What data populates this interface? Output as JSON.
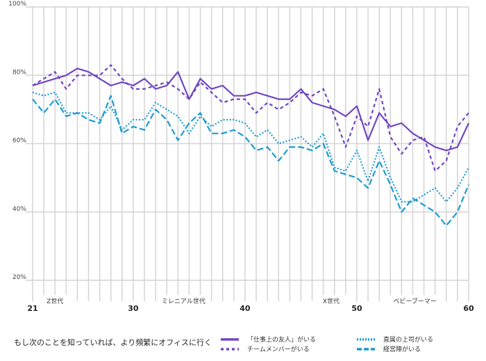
{
  "chart_data": {
    "type": "line",
    "title": "もし次のことを知っていれば、より頻繁にオフィスに行く",
    "xlabel": "",
    "ylabel": "",
    "x": [
      21,
      22,
      23,
      24,
      25,
      26,
      27,
      28,
      29,
      30,
      31,
      32,
      33,
      34,
      35,
      36,
      37,
      38,
      39,
      40,
      41,
      42,
      43,
      44,
      45,
      46,
      47,
      48,
      49,
      50,
      51,
      52,
      53,
      54,
      55,
      56,
      57,
      58,
      59,
      60
    ],
    "x_tick_labels": [
      "21",
      "30",
      "40",
      "50",
      "60"
    ],
    "x_tick_values": [
      21,
      30,
      40,
      50,
      60
    ],
    "y_tick_labels": [
      "20%",
      "40%",
      "60%",
      "80%",
      "100%"
    ],
    "y_tick_values": [
      20,
      40,
      60,
      80,
      100
    ],
    "ylim": [
      14,
      100
    ],
    "xlim": [
      21,
      60
    ],
    "grid": true,
    "legend_position": "bottom",
    "generations": [
      {
        "label": "Z世代",
        "center": 23
      },
      {
        "label": "ミレニアル世代",
        "center": 34.5
      },
      {
        "label": "X世代",
        "center": 47.7
      },
      {
        "label": "ベビーブーマー",
        "center": 55.2
      }
    ],
    "series": [
      {
        "name": "「仕事上の友人」がいる",
        "color": "#7146c1",
        "style": "solid",
        "values": [
          77,
          78,
          79,
          80,
          82,
          81,
          79,
          77,
          78,
          77,
          79,
          76,
          77,
          81,
          73,
          79,
          76,
          77,
          74,
          74,
          75,
          74,
          73,
          73,
          76,
          72,
          71,
          70,
          68,
          71,
          61,
          69,
          65,
          66,
          63,
          61,
          59,
          58,
          59,
          66
        ]
      },
      {
        "name": "チームメンバーがいる",
        "color": "#7146c1",
        "style": "dashed",
        "values": [
          77,
          79,
          81,
          76,
          80,
          80,
          80,
          83,
          79,
          76,
          76,
          77,
          78,
          76,
          73,
          78,
          75,
          72,
          73,
          73,
          69,
          72,
          70,
          72,
          75,
          74,
          76,
          68,
          59,
          68,
          65,
          76,
          62,
          57,
          61,
          62,
          52,
          55,
          65,
          69
        ]
      },
      {
        "name": "直属の上司がいる",
        "color": "#1a9bd1",
        "style": "dotted",
        "values": [
          75,
          74,
          75,
          69,
          69,
          69,
          67,
          71,
          64,
          67,
          67,
          72,
          70,
          68,
          63,
          68,
          65,
          67,
          67,
          66,
          62,
          64,
          60,
          61,
          62,
          59,
          63,
          53,
          52,
          58,
          49,
          59,
          50,
          43,
          43,
          45,
          47,
          43,
          47,
          53
        ]
      },
      {
        "name": "経営陣がいる",
        "color": "#1a9bd1",
        "style": "longdash",
        "values": [
          73,
          69,
          73,
          68,
          69,
          67,
          66,
          74,
          63,
          65,
          64,
          70,
          67,
          61,
          66,
          69,
          63,
          63,
          64,
          62,
          58,
          59,
          55,
          59,
          59,
          58,
          60,
          52,
          51,
          50,
          47,
          55,
          48,
          40,
          44,
          42,
          40,
          36,
          40,
          48
        ]
      }
    ]
  }
}
